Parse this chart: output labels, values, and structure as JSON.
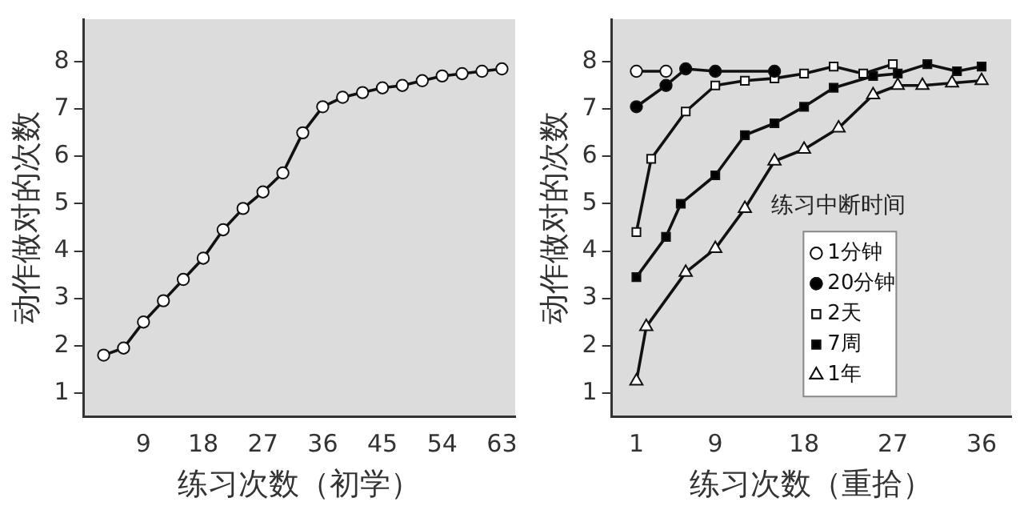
{
  "chart_data": [
    {
      "type": "line",
      "xlabel": "练习次数（初学）",
      "ylabel": "动作做对的次数",
      "xlim": [
        0,
        65
      ],
      "xticks": [
        9,
        18,
        27,
        36,
        45,
        54,
        63
      ],
      "ylim": [
        0.5,
        8.9
      ],
      "yticks": [
        1,
        2,
        3,
        4,
        5,
        6,
        7,
        8
      ],
      "grid": false,
      "legend": false,
      "series": [
        {
          "color": "#ffffff",
          "marker": "circle",
          "x": [
            3,
            6,
            9,
            12,
            15,
            18,
            21,
            24,
            27,
            30,
            33,
            36,
            39,
            42,
            45,
            48,
            51,
            54,
            57,
            60,
            63
          ],
          "values": [
            1.8,
            1.95,
            2.5,
            2.95,
            3.4,
            3.85,
            4.45,
            4.9,
            5.25,
            5.65,
            6.5,
            7.05,
            7.25,
            7.35,
            7.45,
            7.5,
            7.6,
            7.7,
            7.75,
            7.8,
            7.85
          ]
        }
      ]
    },
    {
      "type": "line",
      "xlabel": "练习次数（重拾）",
      "ylabel": "动作做对的次数",
      "legend_title": "练习中断时间",
      "xlim": [
        -1.5,
        39
      ],
      "xticks": [
        1,
        9,
        18,
        27,
        36
      ],
      "ylim": [
        0.5,
        8.9
      ],
      "yticks": [
        1,
        2,
        3,
        4,
        5,
        6,
        7,
        8
      ],
      "grid": false,
      "legend": "center",
      "series": [
        {
          "name": "1分钟",
          "color": "#ffffff",
          "marker": "circle",
          "x": [
            1,
            4
          ],
          "values": [
            7.8,
            7.8
          ]
        },
        {
          "name": "20分钟",
          "color": "#000000",
          "marker": "circle",
          "x": [
            1,
            4,
            6,
            9,
            15
          ],
          "values": [
            7.05,
            7.5,
            7.85,
            7.8,
            7.8
          ]
        },
        {
          "name": "2天",
          "color": "#ffffff",
          "marker": "square",
          "x": [
            1,
            2.5,
            6,
            9,
            12,
            15,
            18,
            21,
            24,
            27
          ],
          "values": [
            4.4,
            5.95,
            6.95,
            7.5,
            7.6,
            7.65,
            7.75,
            7.9,
            7.75,
            7.95
          ]
        },
        {
          "name": "7周",
          "color": "#000000",
          "marker": "square",
          "x": [
            1,
            4,
            5.5,
            9,
            12,
            15,
            18,
            21,
            25,
            27.5,
            30.5,
            33.5,
            36
          ],
          "values": [
            3.45,
            4.3,
            5,
            5.6,
            6.45,
            6.7,
            7.05,
            7.45,
            7.7,
            7.75,
            7.95,
            7.8,
            7.9
          ]
        },
        {
          "name": "1年",
          "color": "#ffffff",
          "marker": "triangle",
          "x": [
            1,
            2,
            6,
            9,
            12,
            15,
            18,
            21.5,
            25,
            27.5,
            30,
            33,
            36
          ],
          "values": [
            1.25,
            2.4,
            3.55,
            4.05,
            4.9,
            5.9,
            6.15,
            6.6,
            7.3,
            7.5,
            7.5,
            7.55,
            7.6
          ]
        }
      ]
    }
  ]
}
